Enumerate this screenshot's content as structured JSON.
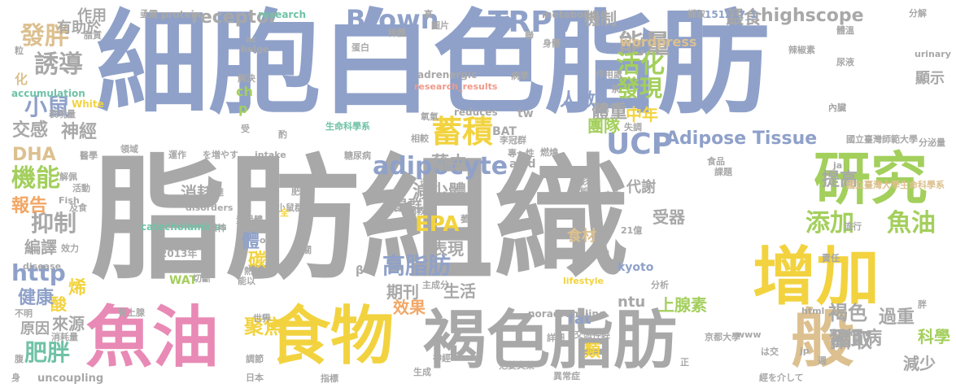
{
  "palette": {
    "blue": "#8fa1c9",
    "gray": "#a8a8a8",
    "yellow": "#f2d33f",
    "pink": "#e88ab5",
    "green": "#a3cf5c",
    "teal": "#6fc2a7",
    "orange": "#f2a766",
    "tan": "#dcc08f",
    "salmon": "#f09a8a"
  },
  "words": [
    {
      "text": "細胞白色脂肪",
      "color": "#8fa1c9"
    },
    {
      "text": "脂肪組織",
      "color": "#a8a8a8"
    },
    {
      "text": "褐色脂肪",
      "color": "#a8a8a8"
    },
    {
      "text": "魚油",
      "color": "#e88ab5"
    },
    {
      "text": "食物",
      "color": "#f2d33f"
    },
    {
      "text": "增加",
      "color": "#f2d33f"
    },
    {
      "text": "研究",
      "color": "#a3cf5c"
    },
    {
      "text": "般",
      "color": "#dcc08f"
    },
    {
      "text": "蓄積",
      "color": "#f2d33f"
    },
    {
      "text": "UCP",
      "color": "#8fa1c9"
    },
    {
      "text": "TRPV",
      "color": "#8fa1c9"
    },
    {
      "text": "Brown",
      "color": "#8fa1c9"
    },
    {
      "text": "Adipose Tissue",
      "color": "#8fa1c9"
    },
    {
      "text": "adipocyte",
      "color": "#8fa1c9"
    },
    {
      "text": "添加",
      "color": "#a3cf5c"
    },
    {
      "text": "魚油",
      "color": "#a3cf5c"
    },
    {
      "text": "能量",
      "color": "#a8a8a8"
    },
    {
      "text": "活化",
      "color": "#a3cf5c"
    },
    {
      "text": "發現",
      "color": "#a3cf5c"
    },
    {
      "text": "高脂肪",
      "color": "#8fa1c9"
    },
    {
      "text": "EPA",
      "color": "#f2d33f"
    },
    {
      "text": "發胖",
      "color": "#dcc08f"
    },
    {
      "text": "誘導",
      "color": "#a8a8a8"
    },
    {
      "text": "小鼠",
      "color": "#8fa1c9"
    },
    {
      "text": "交感",
      "color": "#a8a8a8"
    },
    {
      "text": "神經",
      "color": "#a8a8a8"
    },
    {
      "text": "DHA",
      "color": "#dcc08f"
    },
    {
      "text": "機能",
      "color": "#a3cf5c"
    },
    {
      "text": "抑制",
      "color": "#a8a8a8"
    },
    {
      "text": "http",
      "color": "#8fa1c9"
    },
    {
      "text": "肥胖",
      "color": "#6fc2a7"
    },
    {
      "text": "receptor",
      "color": "#a8a8a8"
    },
    {
      "text": "highscope",
      "color": "#a8a8a8"
    },
    {
      "text": "藉由",
      "color": "#a8a8a8"
    },
    {
      "text": "攝取",
      "color": "#a8a8a8"
    },
    {
      "text": "過重",
      "color": "#a8a8a8"
    },
    {
      "text": "褐色",
      "color": "#a8a8a8"
    },
    {
      "text": "習慣病",
      "color": "#a8a8a8"
    },
    {
      "text": "科學",
      "color": "#a3cf5c"
    },
    {
      "text": "減少",
      "color": "#a8a8a8"
    },
    {
      "text": "提高",
      "color": "#a8a8a8"
    },
    {
      "text": "聚焦",
      "color": "#f2d33f"
    },
    {
      "text": "機制",
      "color": "#a8a8a8"
    },
    {
      "text": "餵食",
      "color": "#a8a8a8"
    },
    {
      "text": "體重",
      "color": "#a8a8a8"
    },
    {
      "text": "人數",
      "color": "#8fa1c9"
    },
    {
      "text": "中年",
      "color": "#f2d33f"
    },
    {
      "text": "團隊",
      "color": "#a3cf5c"
    },
    {
      "text": "代謝",
      "color": "#a8a8a8"
    },
    {
      "text": "減少體",
      "color": "#a8a8a8"
    },
    {
      "text": "期刊",
      "color": "#a8a8a8"
    },
    {
      "text": "生活",
      "color": "#a8a8a8"
    },
    {
      "text": "表現",
      "color": "#a8a8a8"
    },
    {
      "text": "效果",
      "color": "#f2a766"
    },
    {
      "text": "上腺素",
      "color": "#a3cf5c"
    },
    {
      "text": "ntu",
      "color": "#a8a8a8"
    },
    {
      "text": "fat",
      "color": "#8fa1c9"
    },
    {
      "text": "類",
      "color": "#f2d33f"
    },
    {
      "text": "受器",
      "color": "#a8a8a8"
    },
    {
      "text": "鼠群",
      "color": "#a8a8a8"
    },
    {
      "text": "報告",
      "color": "#f2a766"
    },
    {
      "text": "消耗",
      "color": "#a8a8a8"
    },
    {
      "text": "碳",
      "color": "#f2d33f"
    },
    {
      "text": "烯",
      "color": "#f2d33f"
    },
    {
      "text": "酸",
      "color": "#f2d33f"
    },
    {
      "text": "健康",
      "color": "#8fa1c9"
    },
    {
      "text": "來源",
      "color": "#a8a8a8"
    },
    {
      "text": "原因",
      "color": "#a8a8a8"
    },
    {
      "text": "編譯",
      "color": "#a8a8a8"
    },
    {
      "text": "有助於",
      "color": "#a8a8a8"
    },
    {
      "text": "作用",
      "color": "#a8a8a8"
    },
    {
      "text": "體",
      "color": "#8fa1c9"
    },
    {
      "text": "食材",
      "color": "#dcc08f"
    },
    {
      "text": "顯示",
      "color": "#a8a8a8"
    },
    {
      "text": "BAT",
      "color": "#a8a8a8"
    },
    {
      "text": "tw",
      "color": "#a8a8a8"
    },
    {
      "text": "ch",
      "color": "#a3cf5c"
    },
    {
      "text": "p",
      "color": "#a3cf5c"
    },
    {
      "text": "化",
      "color": "#dcc08f"
    },
    {
      "text": "wordpress",
      "color": "#dcc08f"
    },
    {
      "text": "metabolic",
      "color": "#a8a8a8"
    },
    {
      "text": "adrenergic",
      "color": "#a8a8a8"
    },
    {
      "text": "research_results",
      "color": "#f09a8a"
    },
    {
      "text": "reduces",
      "color": "#a8a8a8"
    },
    {
      "text": "accumulation",
      "color": "#6fc2a7"
    },
    {
      "text": "White",
      "color": "#f2d33f"
    },
    {
      "text": "生命科學系",
      "color": "#6fc2a7"
    },
    {
      "text": "國立臺灣師範大學",
      "color": "#a8a8a8"
    },
    {
      "text": "國立臺灣大學生命科學系",
      "color": "#dcc08f"
    },
    {
      "text": "protein",
      "color": "#a8a8a8"
    },
    {
      "text": "research",
      "color": "#6fc2a7"
    },
    {
      "text": "151217_1",
      "color": "#8fa1c9"
    },
    {
      "text": "擷取",
      "color": "#a8a8a8"
    },
    {
      "text": "高",
      "color": "#a8a8a8"
    },
    {
      "text": "acid",
      "color": "#a8a8a8"
    },
    {
      "text": "2013年",
      "color": "#a8a8a8"
    },
    {
      "text": "catecholamines",
      "color": "#6fc2a7"
    },
    {
      "text": "WAT",
      "color": "#a3cf5c"
    },
    {
      "text": "切斷",
      "color": "#a8a8a8"
    },
    {
      "text": "noradrenaline",
      "color": "#a8a8a8"
    },
    {
      "text": "uncoupling",
      "color": "#a8a8a8"
    },
    {
      "text": "disease",
      "color": "#a8a8a8"
    },
    {
      "text": "lifestyle",
      "color": "#f2d33f"
    },
    {
      "text": "kyoto",
      "color": "#8fa1c9"
    },
    {
      "text": "京都大學",
      "color": "#a8a8a8"
    },
    {
      "text": "www",
      "color": "#a8a8a8"
    },
    {
      "text": "jp",
      "color": "#a8a8a8"
    },
    {
      "text": "html",
      "color": "#a8a8a8"
    },
    {
      "text": "intake",
      "color": "#a8a8a8"
    },
    {
      "text": "disorders",
      "color": "#a8a8a8"
    },
    {
      "text": "oil",
      "color": "#a8a8a8"
    },
    {
      "text": "β",
      "color": "#a8a8a8"
    },
    {
      "text": "を増やす",
      "color": "#a8a8a8"
    },
    {
      "text": "經を介して",
      "color": "#a8a8a8"
    },
    {
      "text": "范姜文榮",
      "color": "#a8a8a8"
    },
    {
      "text": "日本",
      "color": "#a8a8a8"
    },
    {
      "text": "世界",
      "color": "#a8a8a8"
    },
    {
      "text": "生成",
      "color": "#a8a8a8"
    },
    {
      "text": "21億",
      "color": "#a8a8a8"
    },
    {
      "text": "李冠群",
      "color": "#a8a8a8"
    },
    {
      "text": "專一性",
      "color": "#a8a8a8"
    },
    {
      "text": "糖尿病",
      "color": "#a8a8a8"
    },
    {
      "text": "燃燒",
      "color": "#a8a8a8"
    },
    {
      "text": "分解",
      "color": "#a8a8a8"
    },
    {
      "text": "分泌量",
      "color": "#a8a8a8"
    },
    {
      "text": "urinary",
      "color": "#a8a8a8"
    },
    {
      "text": "ja",
      "color": "#a8a8a8"
    },
    {
      "text": "課題",
      "color": "#a8a8a8"
    },
    {
      "text": "流行",
      "color": "#a8a8a8"
    },
    {
      "text": "責任",
      "color": "#a8a8a8"
    },
    {
      "text": "分析",
      "color": "#a8a8a8"
    },
    {
      "text": "食品",
      "color": "#a8a8a8"
    },
    {
      "text": "血壓",
      "color": "#a8a8a8"
    },
    {
      "text": "儲存",
      "color": "#a8a8a8"
    },
    {
      "text": "疾病",
      "color": "#a8a8a8"
    },
    {
      "text": "副教授",
      "color": "#a8a8a8"
    },
    {
      "text": "萎縮",
      "color": "#a8a8a8"
    },
    {
      "text": "主成分",
      "color": "#a8a8a8"
    },
    {
      "text": "並未",
      "color": "#a8a8a8"
    },
    {
      "text": "相關",
      "color": "#a8a8a8"
    },
    {
      "text": "感神",
      "color": "#a8a8a8"
    },
    {
      "text": "小鼠群",
      "color": "#a8a8a8"
    },
    {
      "text": "運作",
      "color": "#a8a8a8"
    },
    {
      "text": "醫學",
      "color": "#a8a8a8"
    },
    {
      "text": "領域",
      "color": "#a8a8a8"
    },
    {
      "text": "效力",
      "color": "#a8a8a8"
    },
    {
      "text": "活動",
      "color": "#a8a8a8"
    },
    {
      "text": "不明",
      "color": "#a8a8a8"
    },
    {
      "text": "消耗量",
      "color": "#a8a8a8"
    },
    {
      "text": "腎上腺",
      "color": "#a8a8a8"
    },
    {
      "text": "指標",
      "color": "#a8a8a8"
    },
    {
      "text": "詳細",
      "color": "#a8a8a8"
    },
    {
      "text": "交感神經",
      "color": "#a8a8a8"
    },
    {
      "text": "異常症",
      "color": "#a8a8a8"
    },
    {
      "text": "能以",
      "color": "#a8a8a8"
    },
    {
      "text": "解決",
      "color": "#a8a8a8"
    },
    {
      "text": "作用處",
      "color": "#a8a8a8"
    },
    {
      "text": "尿液",
      "color": "#a8a8a8"
    },
    {
      "text": "內臟",
      "color": "#a8a8a8"
    },
    {
      "text": "失調",
      "color": "#a8a8a8"
    },
    {
      "text": "體溫",
      "color": "#a8a8a8"
    },
    {
      "text": "辣椒素",
      "color": "#a8a8a8"
    },
    {
      "text": "身體",
      "color": "#a8a8a8"
    },
    {
      "text": "圖片",
      "color": "#a8a8a8"
    },
    {
      "text": "蛋白",
      "color": "#a8a8a8"
    },
    {
      "text": "病學",
      "color": "#a8a8a8"
    },
    {
      "text": "氧氣",
      "color": "#a8a8a8"
    },
    {
      "text": "表現量",
      "color": "#a8a8a8"
    },
    {
      "text": "影響",
      "color": "#a8a8a8"
    },
    {
      "text": "編輯",
      "color": "#a8a8a8"
    },
    {
      "text": "相較",
      "color": "#a8a8a8"
    },
    {
      "text": "素受體",
      "color": "#a8a8a8"
    },
    {
      "text": "亟需",
      "color": "#a8a8a8"
    },
    {
      "text": "脂質",
      "color": "#a8a8a8"
    },
    {
      "text": "粒",
      "color": "#a8a8a8"
    },
    {
      "text": "稀體",
      "color": "#a8a8a8"
    },
    {
      "text": "beige",
      "color": "#a8a8a8"
    },
    {
      "text": "ac",
      "color": "#a8a8a8"
    },
    {
      "text": "Fish",
      "color": "#a8a8a8"
    },
    {
      "text": "及食",
      "color": "#a8a8a8"
    },
    {
      "text": "解佩",
      "color": "#a8a8a8"
    },
    {
      "text": "神經",
      "color": "#a8a8a8"
    },
    {
      "text": "正",
      "color": "#a8a8a8"
    },
    {
      "text": "ｕ",
      "color": "#a8a8a8"
    },
    {
      "text": "は交",
      "color": "#a8a8a8"
    },
    {
      "text": "調節",
      "color": "#a8a8a8"
    },
    {
      "text": "腹",
      "color": "#a8a8a8"
    },
    {
      "text": "身",
      "color": "#a8a8a8"
    },
    {
      "text": "胖",
      "color": "#a8a8a8"
    },
    {
      "text": "週",
      "color": "#a8a8a8"
    },
    {
      "text": "熱",
      "color": "#a8a8a8"
    },
    {
      "text": "腎",
      "color": "#a8a8a8"
    },
    {
      "text": "全",
      "color": "#f2d33f"
    },
    {
      "text": "肥",
      "color": "#a8a8a8"
    },
    {
      "text": "達",
      "color": "#a8a8a8"
    },
    {
      "text": "迷走",
      "color": "#a8a8a8"
    },
    {
      "text": "茶",
      "color": "#a8a8a8"
    },
    {
      "text": "聯",
      "color": "#a8a8a8"
    },
    {
      "text": "受",
      "color": "#a8a8a8"
    },
    {
      "text": "酌",
      "color": "#a8a8a8"
    }
  ]
}
